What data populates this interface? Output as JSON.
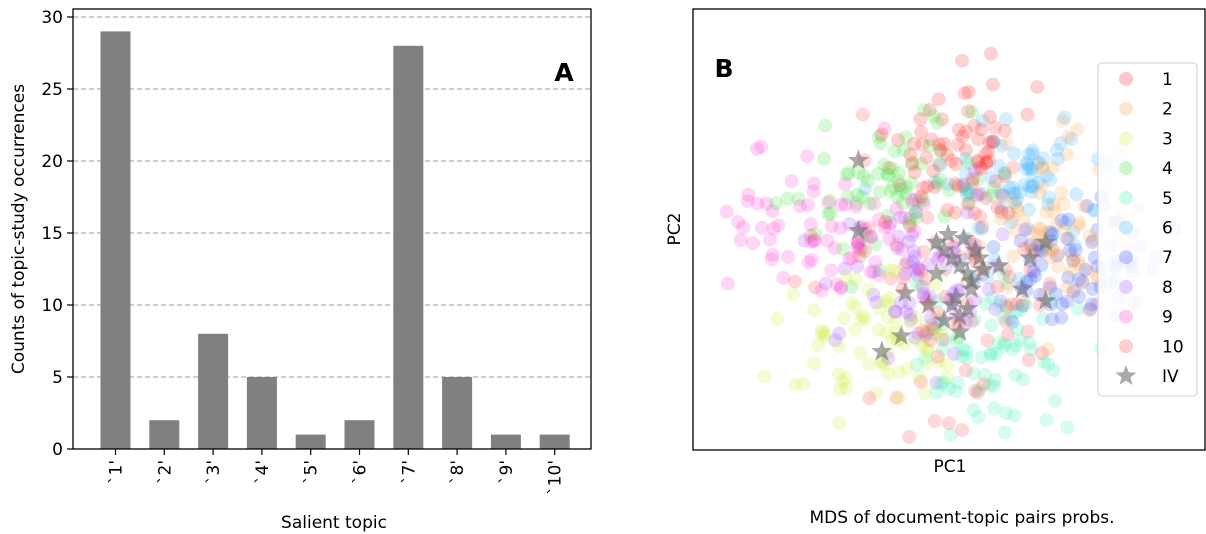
{
  "chart_data": [
    {
      "type": "bar",
      "panel_label": "A",
      "xlabel": "Salient topic",
      "ylabel": "Counts of topic-study occurrences",
      "categories": [
        "`1'",
        "`2'",
        "`3'",
        "`4'",
        "`5'",
        "`6'",
        "`7'",
        "`8'",
        "`9'",
        "`10'"
      ],
      "values": [
        29,
        2,
        8,
        5,
        1,
        2,
        28,
        5,
        1,
        1
      ],
      "ylim": [
        0,
        30
      ],
      "yticks": [
        "0",
        "5",
        "10",
        "15",
        "20",
        "25",
        "30"
      ],
      "grid": "horizontal dashed",
      "bar_color": "#808080"
    },
    {
      "type": "scatter",
      "panel_label": "B",
      "xlabel": "PC1",
      "ylabel": "PC2",
      "caption": "MDS of document-topic pairs probs.",
      "legend_position": "right",
      "series": [
        {
          "name": "1",
          "color": "#ff2020",
          "marker": "circle",
          "center": [
            0.0,
            1.3
          ],
          "spread": [
            0.45,
            0.55
          ]
        },
        {
          "name": "2",
          "color": "#ffa040",
          "marker": "circle",
          "center": [
            1.4,
            0.4
          ],
          "spread": [
            0.5,
            0.5
          ]
        },
        {
          "name": "3",
          "color": "#c8f030",
          "marker": "circle",
          "center": [
            -0.9,
            -1.0
          ],
          "spread": [
            0.5,
            0.45
          ]
        },
        {
          "name": "4",
          "color": "#30e030",
          "marker": "circle",
          "center": [
            -0.8,
            0.9
          ],
          "spread": [
            0.55,
            0.5
          ]
        },
        {
          "name": "5",
          "color": "#30f0b0",
          "marker": "circle",
          "center": [
            0.5,
            -1.2
          ],
          "spread": [
            0.45,
            0.55
          ]
        },
        {
          "name": "6",
          "color": "#30b0ff",
          "marker": "circle",
          "center": [
            0.9,
            0.9
          ],
          "spread": [
            0.55,
            0.5
          ]
        },
        {
          "name": "7",
          "color": "#2040ff",
          "marker": "circle",
          "center": [
            1.6,
            -0.1
          ],
          "spread": [
            0.5,
            0.35
          ]
        },
        {
          "name": "8",
          "color": "#a040ff",
          "marker": "circle",
          "center": [
            -0.3,
            -0.3
          ],
          "spread": [
            0.6,
            0.5
          ]
        },
        {
          "name": "9",
          "color": "#ff30d0",
          "marker": "circle",
          "center": [
            -1.6,
            0.3
          ],
          "spread": [
            0.55,
            0.4
          ]
        },
        {
          "name": "10",
          "color": "#ff4040",
          "marker": "circle",
          "center": [
            0.0,
            -0.5
          ],
          "spread": [
            0.9,
            0.7
          ]
        }
      ],
      "iv_series": {
        "name": "IV",
        "color": "#707070",
        "marker": "star",
        "points": [
          [
            -1.2,
            1.25
          ],
          [
            -1.2,
            0.35
          ],
          [
            -0.6,
            -0.45
          ],
          [
            -0.9,
            -1.2
          ],
          [
            -0.65,
            -1.0
          ],
          [
            -0.1,
            0.1
          ],
          [
            0.0,
            0.0
          ],
          [
            0.1,
            -0.1
          ],
          [
            0.25,
            -0.3
          ],
          [
            0.2,
            -0.2
          ],
          [
            -0.2,
            -0.2
          ],
          [
            0.0,
            -0.6
          ],
          [
            0.1,
            -0.75
          ],
          [
            -0.1,
            -0.8
          ],
          [
            0.05,
            -0.5
          ],
          [
            0.35,
            0.0
          ],
          [
            0.15,
            0.25
          ],
          [
            0.4,
            -0.15
          ],
          [
            -0.3,
            -0.6
          ],
          [
            0.25,
            -0.4
          ],
          [
            0.9,
            -0.4
          ],
          [
            1.0,
            0.0
          ],
          [
            1.2,
            -0.55
          ],
          [
            1.2,
            0.2
          ],
          [
            -0.05,
            0.3
          ],
          [
            0.6,
            -0.1
          ],
          [
            0.1,
            -0.95
          ],
          [
            -0.2,
            0.2
          ],
          [
            0.3,
            0.1
          ],
          [
            0.2,
            -0.65
          ]
        ]
      }
    }
  ]
}
